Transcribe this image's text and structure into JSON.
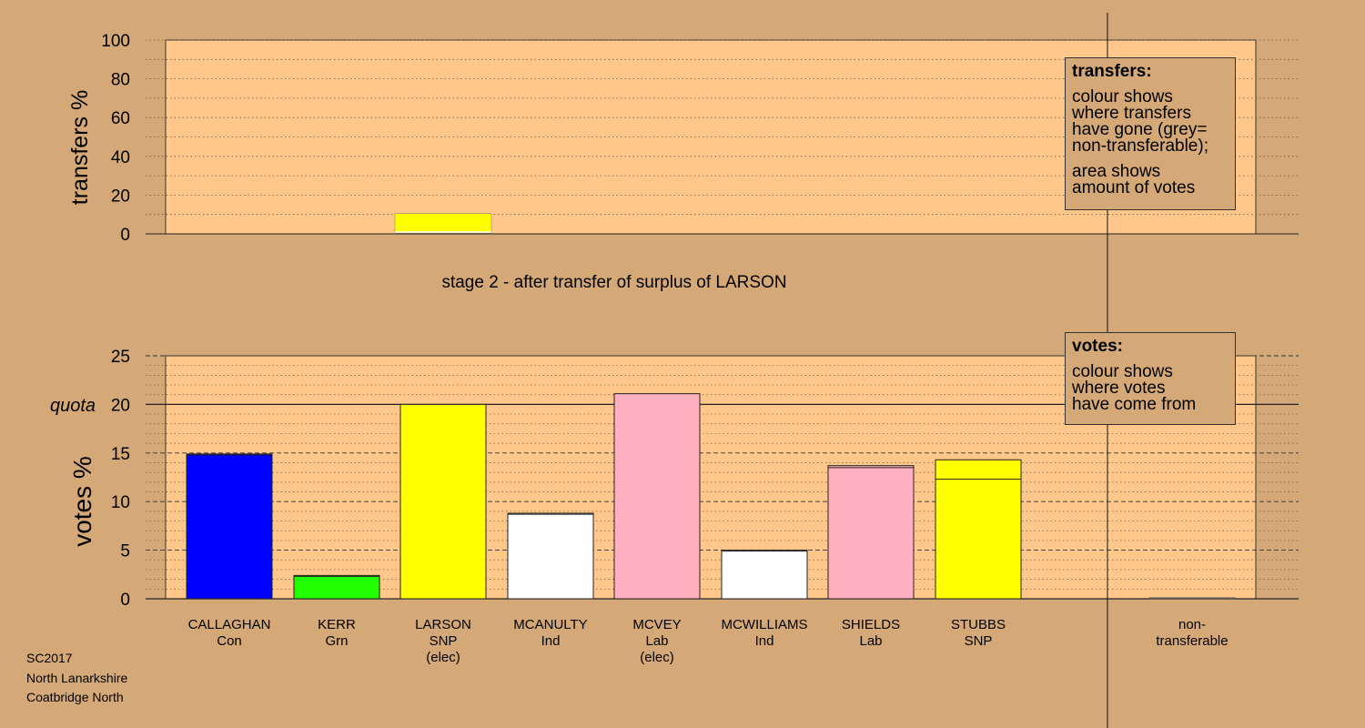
{
  "chart_data": {
    "type": "bar",
    "stage_title": "stage 2 - after transfer of surplus of LARSON",
    "candidates": [
      {
        "name": "CALLAGHAN",
        "party": "Con",
        "elected": ""
      },
      {
        "name": "KERR",
        "party": "Grn",
        "elected": ""
      },
      {
        "name": "LARSON",
        "party": "SNP",
        "elected": "(elec)"
      },
      {
        "name": "MCANULTY",
        "party": "Ind",
        "elected": ""
      },
      {
        "name": "MCVEY",
        "party": "Lab",
        "elected": "(elec)"
      },
      {
        "name": "MCWILLIAMS",
        "party": "Ind",
        "elected": ""
      },
      {
        "name": "SHIELDS",
        "party": "Lab",
        "elected": ""
      },
      {
        "name": "STUBBS",
        "party": "SNP",
        "elected": ""
      }
    ],
    "non_transferable_label": [
      "non-",
      "transferable"
    ],
    "transfers_panel": {
      "ylabel": "transfers %",
      "ylim": [
        0,
        100
      ],
      "ticks": [
        0,
        20,
        40,
        60,
        80,
        100
      ],
      "series": [
        {
          "candidate_index": 2,
          "value": 10.5,
          "color": "#ffff00"
        }
      ]
    },
    "votes_panel": {
      "ylabel": "votes %",
      "ylim": [
        0,
        25
      ],
      "ticks": [
        0,
        5,
        10,
        15,
        20,
        25
      ],
      "quota_label": "quota",
      "quota": 20,
      "values": [
        14.9,
        2.4,
        20.0,
        8.8,
        21.1,
        5.0,
        13.7,
        14.3
      ],
      "stage1_values": [
        14.8,
        2.3,
        20.0,
        8.7,
        21.1,
        4.9,
        13.5,
        12.3
      ],
      "colors": [
        "#0000ff",
        "#22ff00",
        "#ffff00",
        "#ffffff",
        "#ffb0c0",
        "#ffffff",
        "#ffb0c0",
        "#ffff00"
      ],
      "non_transferable_value": 0.1
    },
    "legend_transfers": {
      "title": "transfers:",
      "lines1": [
        "colour shows",
        "where transfers",
        "have gone (grey=",
        "non-transferable);"
      ],
      "lines2": [
        "area shows",
        "amount of votes"
      ]
    },
    "legend_votes": {
      "title": "votes:",
      "lines": [
        "colour shows",
        "where votes",
        "have come from"
      ]
    },
    "grid": true
  },
  "meta": {
    "line1": "SC2017",
    "line2": "North Lanarkshire",
    "line3": "Coatbridge North"
  },
  "colors": {
    "background": "#d4a877",
    "panel": "#ffc88a"
  }
}
